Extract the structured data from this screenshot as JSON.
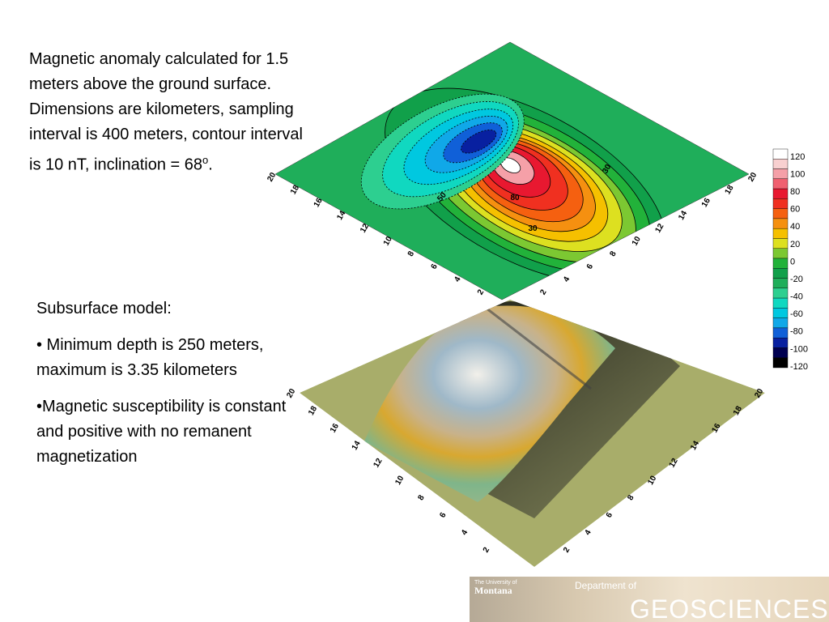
{
  "caption": {
    "main": "Magnetic anomaly calculated for 1.5 meters above the ground surface. Dimensions are kilometers, sampling interval is 400 meters, contour interval is 10 nT, inclination = 68",
    "sup": "o",
    "end": "."
  },
  "model": {
    "heading": "Subsurface model:",
    "bullets": [
      "• Minimum depth is 250 meters, maximum is 3.35 kilometers",
      "•Magnetic susceptibility is constant and positive with no remanent magnetization"
    ]
  },
  "top_plot": {
    "left_axis": [
      "2",
      "4",
      "6",
      "8",
      "10",
      "12",
      "14",
      "16",
      "18",
      "20"
    ],
    "right_axis": [
      "2",
      "4",
      "6",
      "8",
      "10",
      "12",
      "14",
      "16",
      "18",
      "20"
    ],
    "contour_labels": [
      "30",
      "30",
      "80",
      "50"
    ]
  },
  "bottom_plot": {
    "left_axis": [
      "2",
      "4",
      "6",
      "8",
      "10",
      "12",
      "14",
      "16",
      "18",
      "20"
    ],
    "right_axis": [
      "2",
      "4",
      "6",
      "8",
      "10",
      "12",
      "14",
      "16",
      "18",
      "20"
    ]
  },
  "color_scale": [
    "120",
    "100",
    "80",
    "60",
    "40",
    "20",
    "0",
    "-20",
    "-40",
    "-60",
    "-80",
    "-100",
    "-120"
  ],
  "logo": {
    "university": "The University of",
    "name": "Montana",
    "dept": "Department of",
    "field": "GEOSCIENCES"
  }
}
